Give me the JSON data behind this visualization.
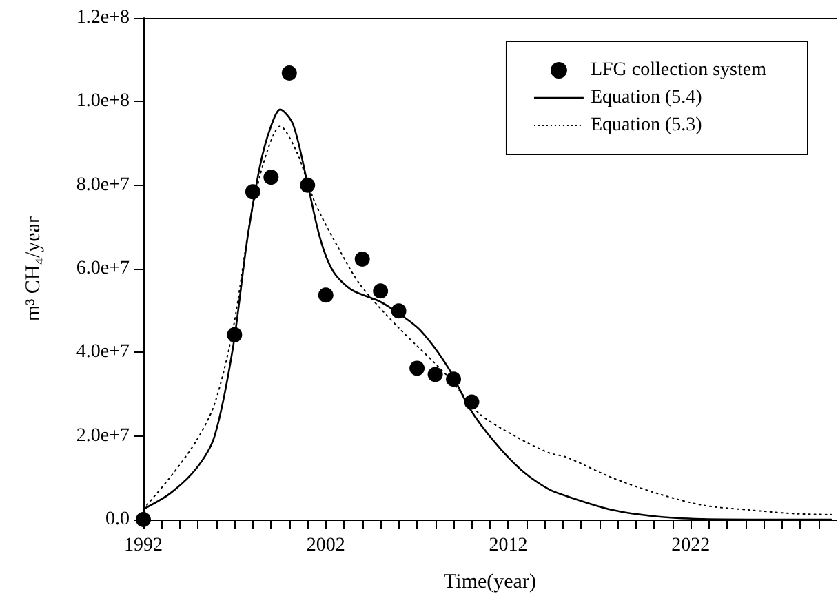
{
  "chart_data": {
    "type": "line",
    "xlabel": "Time(year)",
    "ylabel": "m³ CH₄/year",
    "xlim": [
      1992,
      2030
    ],
    "ylim": [
      0,
      120000000
    ],
    "xticks": [
      1992,
      {
        "value": 1993,
        "label": null
      },
      {
        "value": 1994,
        "label": null
      },
      {
        "value": 1995,
        "label": null
      },
      {
        "value": 1996,
        "label": null
      },
      {
        "value": 1997,
        "label": null
      },
      {
        "value": 1998,
        "label": null
      },
      {
        "value": 1999,
        "label": null
      },
      {
        "value": 2000,
        "label": null
      },
      {
        "value": 2001,
        "label": null
      },
      2002,
      {
        "value": 2003,
        "label": null
      },
      {
        "value": 2004,
        "label": null
      },
      {
        "value": 2005,
        "label": null
      },
      {
        "value": 2006,
        "label": null
      },
      {
        "value": 2007,
        "label": null
      },
      {
        "value": 2008,
        "label": null
      },
      {
        "value": 2009,
        "label": null
      },
      {
        "value": 2010,
        "label": null
      },
      {
        "value": 2011,
        "label": null
      },
      2012,
      {
        "value": 2013,
        "label": null
      },
      {
        "value": 2014,
        "label": null
      },
      {
        "value": 2015,
        "label": null
      },
      {
        "value": 2016,
        "label": null
      },
      {
        "value": 2017,
        "label": null
      },
      {
        "value": 2018,
        "label": null
      },
      {
        "value": 2019,
        "label": null
      },
      {
        "value": 2020,
        "label": null
      },
      {
        "value": 2021,
        "label": null
      },
      2022,
      {
        "value": 2023,
        "label": null
      },
      {
        "value": 2024,
        "label": null
      },
      {
        "value": 2025,
        "label": null
      },
      {
        "value": 2026,
        "label": null
      },
      {
        "value": 2027,
        "label": null
      },
      {
        "value": 2028,
        "label": null
      },
      {
        "value": 2029,
        "label": null
      }
    ],
    "yticks": [
      {
        "value": 0,
        "label": "0.0"
      },
      {
        "value": 20000000,
        "label": "2.0e+7"
      },
      {
        "value": 40000000,
        "label": "4.0e+7"
      },
      {
        "value": 60000000,
        "label": "6.0e+7"
      },
      {
        "value": 80000000,
        "label": "8.0e+7"
      },
      {
        "value": 100000000,
        "label": "1.0e+8"
      },
      {
        "value": 120000000,
        "label": "1.2e+8"
      }
    ],
    "grid": false,
    "legend": "top right",
    "series": [
      {
        "name": "LFG collection system",
        "type": "scatter",
        "marker": "circle",
        "color": "#000000",
        "x": [
          1992,
          1997,
          1998,
          1999,
          2000,
          2001,
          2002,
          2004,
          2005,
          2006,
          2007,
          2008,
          2009,
          2010
        ],
        "values": [
          0,
          44200000,
          78400000,
          81900000,
          106800000,
          80000000,
          53700000,
          62300000,
          54700000,
          49900000,
          36200000,
          34700000,
          33600000,
          28100000
        ]
      },
      {
        "name": "Equation (5.4)",
        "line_style": "solid",
        "marker": "none",
        "color": "#000000",
        "x": [
          1992,
          1993.45,
          1994.9,
          1995.9,
          1996.9,
          1997.7,
          1998.4,
          1998.95,
          1999.5,
          2000.2,
          2000.95,
          2001.7,
          2002.4,
          2003.4,
          2004.9,
          2005.9,
          2007.2,
          2008.7,
          2009.9,
          2011.2,
          2012.7,
          2014.2,
          2015.2,
          2017.7,
          2020.2,
          2022.7,
          2025.2,
          2029.7
        ],
        "values": [
          2500000,
          6200000,
          12200000,
          19900000,
          40800000,
          67100000,
          84700000,
          93500000,
          98100000,
          94600000,
          81400000,
          67100000,
          59400000,
          55000000,
          52300000,
          49600000,
          45200000,
          36400000,
          26500000,
          18800000,
          11900000,
          7300000,
          5600000,
          2300000,
          700000,
          100000,
          0,
          0
        ]
      },
      {
        "name": "Equation (5.3)",
        "line_style": "dotted",
        "marker": "none",
        "color": "#000000",
        "x": [
          1992,
          1993.45,
          1994.9,
          1995.9,
          1996.9,
          1997.9,
          1998.7,
          1999.5,
          2000.4,
          2001.4,
          2002.7,
          2003.9,
          2005.9,
          2008.7,
          2010.4,
          2012.4,
          2014.2,
          2015.2,
          2017.7,
          2020.2,
          2022.7,
          2025.2,
          2027.7,
          2029.7
        ],
        "values": [
          2500000,
          10000000,
          18800000,
          27600000,
          45200000,
          72600000,
          86900000,
          94100000,
          88000000,
          75900000,
          64900000,
          56100000,
          46300000,
          34200000,
          25400000,
          19900000,
          16000000,
          14900000,
          10000000,
          6200000,
          3400000,
          2300000,
          1400000,
          1200000
        ]
      }
    ]
  }
}
